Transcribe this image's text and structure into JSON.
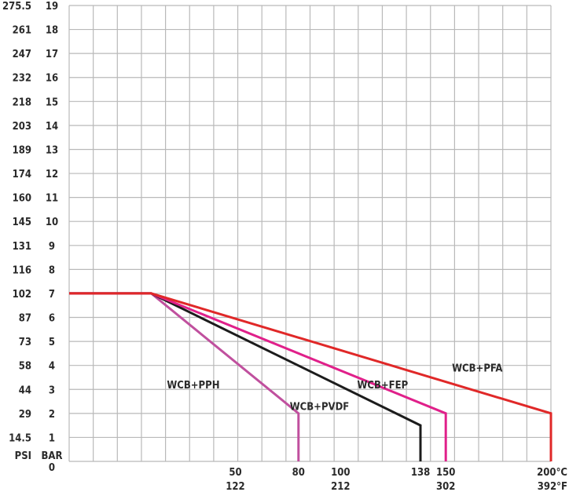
{
  "chart_data": {
    "type": "line",
    "axis_labels": {
      "y_psi": "PSI",
      "y_bar": "BAR",
      "y_zero": "0"
    },
    "y_bar_ticks": [
      "1",
      "2",
      "3",
      "4",
      "5",
      "6",
      "7",
      "8",
      "9",
      "10",
      "11",
      "12",
      "13",
      "14",
      "15",
      "16",
      "17",
      "18",
      "19"
    ],
    "y_psi_ticks": [
      "14.5",
      "29",
      "44",
      "58",
      "73",
      "87",
      "102",
      "116",
      "131",
      "145",
      "160",
      "174",
      "189",
      "203",
      "218",
      "232",
      "247",
      "261",
      "275.5"
    ],
    "x_ticks": [
      {
        "c": 50,
        "label_c": "50",
        "label_f": "122"
      },
      {
        "c": 80,
        "label_c": "80",
        "label_f": ""
      },
      {
        "c": 100,
        "label_c": "100",
        "label_f": "212"
      },
      {
        "c": 138,
        "label_c": "138",
        "label_f": ""
      },
      {
        "c": 150,
        "label_c": "150",
        "label_f": "302"
      },
      {
        "c": 200,
        "label_c": "200°C",
        "label_f": "392°F"
      }
    ],
    "xlim": [
      -29,
      200
    ],
    "ylim": [
      0,
      19
    ],
    "grid": true,
    "series": [
      {
        "name": "WCB+PPH",
        "color": "#c0509e",
        "points": [
          [
            -29,
            7
          ],
          [
            10,
            7
          ],
          [
            80,
            2
          ],
          [
            80,
            0
          ]
        ],
        "label_at": [
          30,
          3.2
        ]
      },
      {
        "name": "WCB+PVDF",
        "color": "#1c1c1c",
        "points": [
          [
            -29,
            7
          ],
          [
            10,
            7
          ],
          [
            138,
            1.5
          ],
          [
            138,
            0
          ]
        ],
        "label_at": [
          90,
          2.3
        ]
      },
      {
        "name": "WCB+FEP",
        "color": "#e0208a",
        "points": [
          [
            -29,
            7
          ],
          [
            10,
            7
          ],
          [
            150,
            2
          ],
          [
            150,
            0
          ]
        ],
        "label_at": [
          120,
          3.2
        ]
      },
      {
        "name": "WCB+PFA",
        "color": "#e02828",
        "points": [
          [
            -29,
            7
          ],
          [
            10,
            7
          ],
          [
            200,
            2
          ],
          [
            200,
            0
          ]
        ],
        "label_at": [
          165,
          3.9
        ]
      }
    ]
  }
}
